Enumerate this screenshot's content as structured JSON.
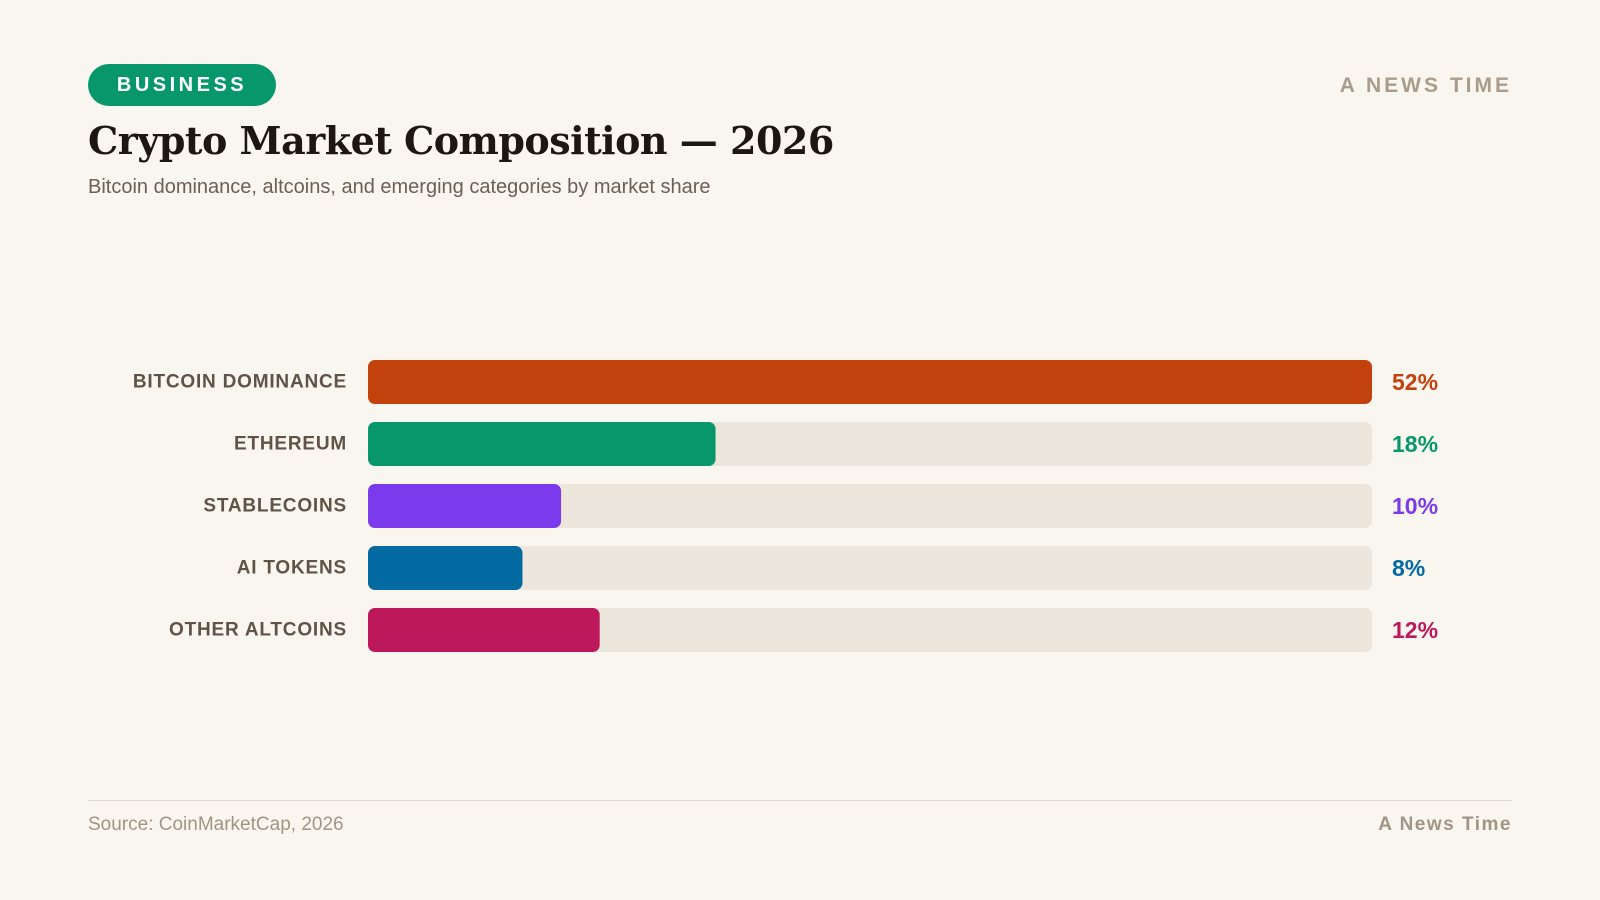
{
  "header": {
    "badge": "BUSINESS",
    "brand": "A NEWS TIME",
    "title": "Crypto Market Composition — 2026",
    "subtitle": "Bitcoin dominance, altcoins, and emerging categories by market share"
  },
  "chart_data": {
    "type": "bar",
    "orientation": "horizontal",
    "title": "Crypto Market Composition — 2026",
    "subtitle": "Bitcoin dominance, altcoins, and emerging categories by market share",
    "categories": [
      "BITCOIN DOMINANCE",
      "ETHEREUM",
      "STABLECOINS",
      "AI TOKENS",
      "OTHER ALTCOINS"
    ],
    "values": [
      52,
      18,
      10,
      8,
      12
    ],
    "value_labels": [
      "52%",
      "18%",
      "10%",
      "8%",
      "12%"
    ],
    "colors": [
      "#c2410c",
      "#07976b",
      "#7c3aed",
      "#0369a1",
      "#be185d"
    ],
    "track_color": "#ede6dc",
    "scale_max": 52,
    "unit": "%",
    "grid": false,
    "legend": "none"
  },
  "footer": {
    "source": "Source: CoinMarketCap, 2026",
    "brand": "A News Time"
  }
}
